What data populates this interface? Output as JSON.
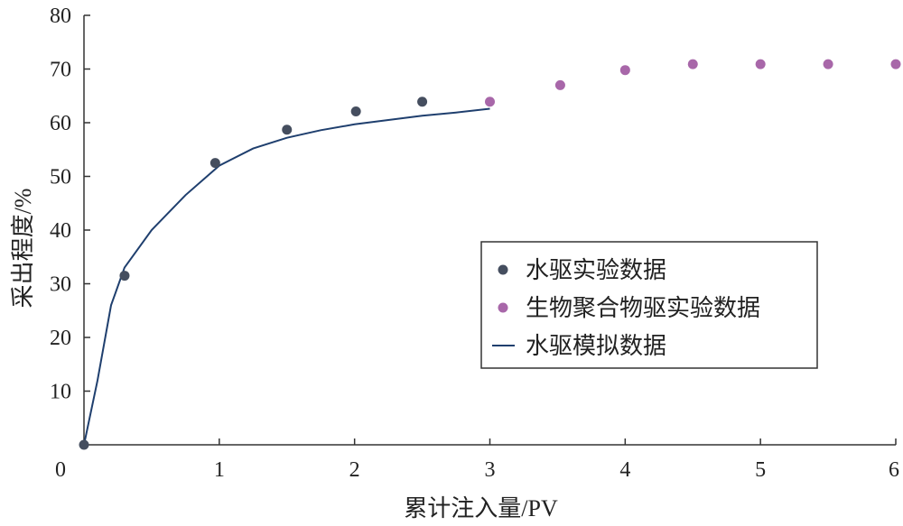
{
  "chart_data": {
    "type": "scatter",
    "xlabel": "累计注入量/PV",
    "ylabel": "采出程度/%",
    "xlim": [
      0,
      6
    ],
    "ylim": [
      0,
      80
    ],
    "x_ticks": [
      "0",
      "1",
      "2",
      "3",
      "4",
      "5",
      "6"
    ],
    "y_ticks": [
      "10",
      "20",
      "30",
      "40",
      "50",
      "60",
      "70",
      "80"
    ],
    "grid": false,
    "legend_position": "center-right",
    "series": [
      {
        "name": "水驱实验数据",
        "type": "scatter",
        "color": "#454e5f",
        "points": [
          [
            0.0,
            0.0
          ],
          [
            0.3,
            31.5
          ],
          [
            0.97,
            52.5
          ],
          [
            1.5,
            58.7
          ],
          [
            2.01,
            62.1
          ],
          [
            2.5,
            63.9
          ]
        ]
      },
      {
        "name": "生物聚合物驱实验数据",
        "type": "scatter",
        "color": "#a867a9",
        "points": [
          [
            3.0,
            63.9
          ],
          [
            3.52,
            67.0
          ],
          [
            4.0,
            69.8
          ],
          [
            4.5,
            70.9
          ],
          [
            5.0,
            70.9
          ],
          [
            5.5,
            70.9
          ],
          [
            6.0,
            70.9
          ]
        ]
      },
      {
        "name": "水驱模拟数据",
        "type": "line",
        "color": "#1f3f6e",
        "points": [
          [
            0.0,
            0.0
          ],
          [
            0.1,
            12.0
          ],
          [
            0.2,
            26.0
          ],
          [
            0.3,
            33.0
          ],
          [
            0.5,
            40.0
          ],
          [
            0.75,
            46.5
          ],
          [
            1.0,
            52.0
          ],
          [
            1.25,
            55.2
          ],
          [
            1.5,
            57.2
          ],
          [
            1.75,
            58.6
          ],
          [
            2.0,
            59.7
          ],
          [
            2.25,
            60.5
          ],
          [
            2.5,
            61.3
          ],
          [
            2.75,
            61.9
          ],
          [
            3.0,
            62.6
          ]
        ]
      }
    ]
  }
}
